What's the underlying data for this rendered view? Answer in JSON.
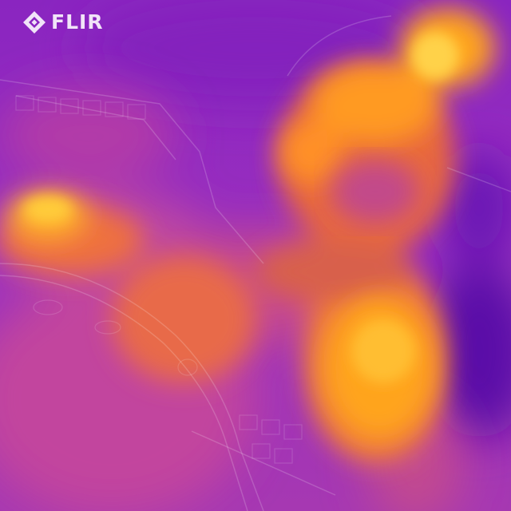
{
  "branding": {
    "logo_text": "FLIR",
    "logo_icon": "flir-diamond-logo-icon"
  },
  "palette": {
    "cold": "#5a0fa8",
    "cool": "#8a2cc4",
    "mid": "#c8459a",
    "warm": "#f07a3a",
    "hot": "#ffa41c",
    "hottest": "#ffd24a"
  }
}
